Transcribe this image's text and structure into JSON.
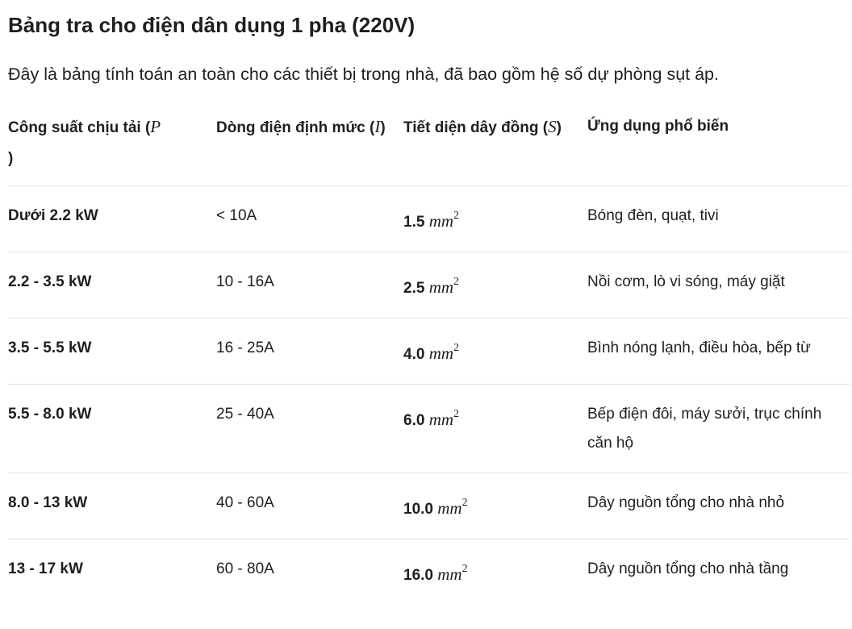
{
  "title": "Bảng tra cho điện dân dụng 1 pha (220V)",
  "intro": "Đây là bảng tính toán an toàn cho các thiết bị trong nhà, đã bao gồm hệ số dự phòng sụt áp.",
  "table": {
    "headers": [
      {
        "text": "Công suất chịu tải (",
        "symbol": "P",
        "close": ")"
      },
      {
        "text": "Dòng điện định mức (",
        "symbol": "I",
        "close": ")"
      },
      {
        "text": "Tiết diện dây đồng (",
        "symbol": "S",
        "close": ")"
      },
      {
        "text": "Ứng dụng phổ biến"
      }
    ],
    "unit": "mm",
    "unit_exp": "2",
    "rows": [
      {
        "power": "Dưới 2.2 kW",
        "current": "< 10A",
        "section": "1.5",
        "usage": "Bóng đèn, quạt, tivi"
      },
      {
        "power": "2.2 - 3.5 kW",
        "current": "10 - 16A",
        "section": "2.5",
        "usage": "Nồi cơm, lò vi sóng, máy giặt"
      },
      {
        "power": "3.5 - 5.5 kW",
        "current": "16 - 25A",
        "section": "4.0",
        "usage": "Bình nóng lạnh, điều hòa, bếp từ"
      },
      {
        "power": "5.5 - 8.0 kW",
        "current": "25 - 40A",
        "section": "6.0",
        "usage": "Bếp điện đôi, máy sưởi, trục chính căn hộ"
      },
      {
        "power": "8.0 - 13 kW",
        "current": "40 - 60A",
        "section": "10.0",
        "usage": "Dây nguồn tổng cho nhà nhỏ"
      },
      {
        "power": "13 - 17 kW",
        "current": "60 - 80A",
        "section": "16.0",
        "usage": "Dây nguồn tổng cho nhà tầng"
      }
    ]
  }
}
